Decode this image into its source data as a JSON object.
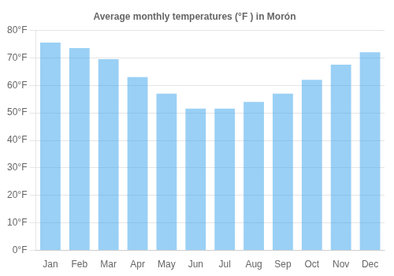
{
  "chart_data": {
    "type": "bar",
    "title": "Average monthly temperatures (°F ) in Morón",
    "categories": [
      "Jan",
      "Feb",
      "Mar",
      "Apr",
      "May",
      "Jun",
      "Jul",
      "Aug",
      "Sep",
      "Oct",
      "Nov",
      "Dec"
    ],
    "values": [
      75.5,
      73.5,
      69.5,
      63.0,
      57.0,
      51.5,
      51.5,
      54.0,
      57.0,
      62.0,
      67.5,
      72.0
    ],
    "ylim": [
      0,
      80
    ],
    "yticks": [
      {
        "value": 0,
        "label": "0°F"
      },
      {
        "value": 10,
        "label": "10°F"
      },
      {
        "value": 20,
        "label": "20°F"
      },
      {
        "value": 30,
        "label": "30°F"
      },
      {
        "value": 40,
        "label": "40°F"
      },
      {
        "value": 50,
        "label": "50°F"
      },
      {
        "value": 60,
        "label": "60°F"
      },
      {
        "value": 70,
        "label": "70°F"
      },
      {
        "value": 80,
        "label": "80°F"
      }
    ],
    "grid": true
  }
}
